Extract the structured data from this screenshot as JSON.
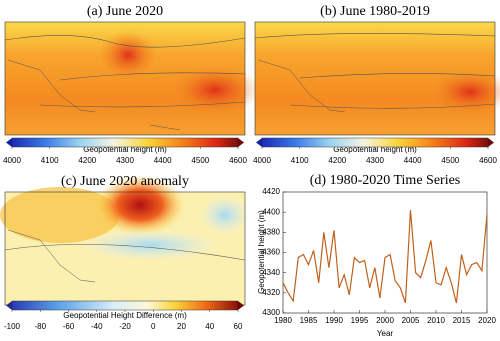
{
  "panels": [
    {
      "title": "(a) June 2020",
      "colorbar_label": "Geopotential height (m)"
    },
    {
      "title": "(b) June 1980-2019",
      "colorbar_label": "Geopotential height (m)"
    },
    {
      "title": "(c) June 2020 anomaly",
      "colorbar_label": "Geopotential Height Difference (m)"
    }
  ],
  "colorbars": [
    {
      "lim": [
        4000,
        4600
      ],
      "ticks": [
        4000,
        4100,
        4200,
        4300,
        4400,
        4500,
        4600
      ]
    },
    {
      "lim": [
        -100,
        60
      ],
      "ticks": [
        -100,
        -80,
        -60,
        -40,
        -20,
        0,
        20,
        40,
        60
      ]
    }
  ],
  "chart_data": {
    "type": "line",
    "title": "(d) 1980-2020 Time Series",
    "x_label": "Year",
    "y_label": "Geopotential height (m)",
    "color": "#c0601c",
    "x": [
      1980,
      1981,
      1982,
      1983,
      1984,
      1985,
      1986,
      1987,
      1988,
      1989,
      1990,
      1991,
      1992,
      1993,
      1994,
      1995,
      1996,
      1997,
      1998,
      1999,
      2000,
      2001,
      2002,
      2003,
      2004,
      2005,
      2006,
      2007,
      2008,
      2009,
      2010,
      2011,
      2012,
      2013,
      2014,
      2015,
      2016,
      2017,
      2018,
      2019,
      2020
    ],
    "values": [
      4330,
      4320,
      4312,
      4355,
      4358,
      4348,
      4362,
      4330,
      4380,
      4345,
      4382,
      4325,
      4338,
      4318,
      4355,
      4350,
      4352,
      4325,
      4345,
      4315,
      4355,
      4358,
      4332,
      4325,
      4310,
      4402,
      4340,
      4335,
      4352,
      4372,
      4330,
      4328,
      4345,
      4330,
      4310,
      4358,
      4338,
      4348,
      4350,
      4342,
      4398
    ],
    "xlim": [
      1980,
      2020
    ],
    "xticks": [
      1980,
      1985,
      1990,
      1995,
      2000,
      2005,
      2010,
      2015,
      2020
    ],
    "ylim": [
      4300,
      4420
    ],
    "yticks": [
      4300,
      4320,
      4340,
      4360,
      4380,
      4400,
      4420
    ]
  }
}
